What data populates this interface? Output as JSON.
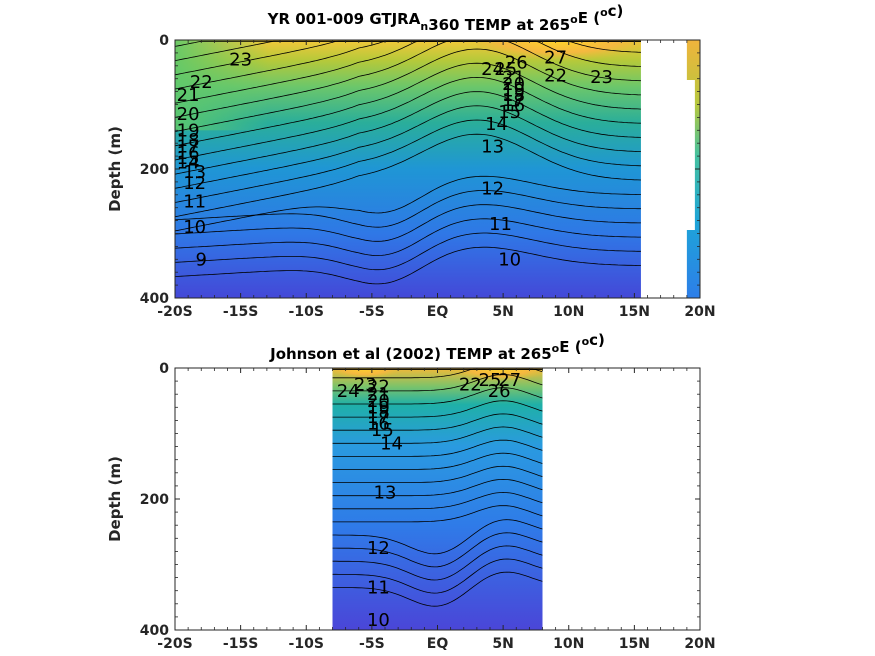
{
  "chart_data": [
    {
      "type": "contour",
      "title_parts": [
        "YR 001-009 GTJRA",
        "n",
        "360 TEMP at 265",
        "o",
        "E (",
        "o",
        "c)"
      ],
      "ylabel": "Depth (m)",
      "xlabel": "",
      "x_ticks": [
        "-20S",
        "-15S",
        "-10S",
        "-5S",
        "EQ",
        "5N",
        "10N",
        "15N",
        "20N"
      ],
      "x_range": [
        -20,
        20
      ],
      "y_ticks": [
        "0",
        "200",
        "400"
      ],
      "ylim": [
        400,
        0
      ],
      "data_lat_range": [
        -20,
        15.5
      ],
      "colorbar_strip": "partial, right edge near 20N",
      "contour_labels": [
        {
          "text": "23",
          "lat": -15,
          "depth": 30
        },
        {
          "text": "22",
          "lat": -18,
          "depth": 65
        },
        {
          "text": "21",
          "lat": -19,
          "depth": 85
        },
        {
          "text": "20",
          "lat": -19,
          "depth": 115
        },
        {
          "text": "19",
          "lat": -19,
          "depth": 140
        },
        {
          "text": "18",
          "lat": -19,
          "depth": 155
        },
        {
          "text": "17",
          "lat": -19,
          "depth": 165
        },
        {
          "text": "16",
          "lat": -19,
          "depth": 175
        },
        {
          "text": "15",
          "lat": -19,
          "depth": 183
        },
        {
          "text": "14",
          "lat": -19,
          "depth": 190
        },
        {
          "text": "13",
          "lat": -18.5,
          "depth": 205
        },
        {
          "text": "12",
          "lat": -18.5,
          "depth": 222
        },
        {
          "text": "11",
          "lat": -18.5,
          "depth": 250
        },
        {
          "text": "10",
          "lat": -18.5,
          "depth": 290
        },
        {
          "text": "9",
          "lat": -18,
          "depth": 340
        },
        {
          "text": "26",
          "lat": 6,
          "depth": 35
        },
        {
          "text": "27",
          "lat": 9,
          "depth": 27
        },
        {
          "text": "24",
          "lat": 4.2,
          "depth": 45
        },
        {
          "text": "25",
          "lat": 5.2,
          "depth": 45
        },
        {
          "text": "22",
          "lat": 9,
          "depth": 55
        },
        {
          "text": "23",
          "lat": 12.5,
          "depth": 57
        },
        {
          "text": "21",
          "lat": 5.8,
          "depth": 58
        },
        {
          "text": "20",
          "lat": 5.8,
          "depth": 68
        },
        {
          "text": "19",
          "lat": 5.8,
          "depth": 78
        },
        {
          "text": "18",
          "lat": 5.8,
          "depth": 85
        },
        {
          "text": "17",
          "lat": 5.8,
          "depth": 93
        },
        {
          "text": "16",
          "lat": 5.8,
          "depth": 101
        },
        {
          "text": "15",
          "lat": 5.5,
          "depth": 112
        },
        {
          "text": "14",
          "lat": 4.5,
          "depth": 130
        },
        {
          "text": "13",
          "lat": 4.2,
          "depth": 165
        },
        {
          "text": "12",
          "lat": 4.2,
          "depth": 230
        },
        {
          "text": "11",
          "lat": 4.8,
          "depth": 285
        },
        {
          "text": "10",
          "lat": 5.5,
          "depth": 340
        }
      ]
    },
    {
      "type": "contour",
      "title_parts": [
        "Johnson et al (2002) TEMP at 265",
        "o",
        "E (",
        "o",
        "c)"
      ],
      "ylabel": "Depth (m)",
      "xlabel": "",
      "x_ticks": [
        "-20S",
        "-15S",
        "-10S",
        "-5S",
        "EQ",
        "5N",
        "10N",
        "15N",
        "20N"
      ],
      "x_range": [
        -20,
        20
      ],
      "y_ticks": [
        "0",
        "200",
        "400"
      ],
      "ylim": [
        400,
        0
      ],
      "data_lat_range": [
        -8,
        8
      ],
      "contour_labels": [
        {
          "text": "24",
          "lat": -6.8,
          "depth": 35
        },
        {
          "text": "23",
          "lat": -5.5,
          "depth": 25
        },
        {
          "text": "22",
          "lat": -4.5,
          "depth": 28
        },
        {
          "text": "21",
          "lat": -4.5,
          "depth": 40
        },
        {
          "text": "20",
          "lat": -4.5,
          "depth": 50
        },
        {
          "text": "19",
          "lat": -4.5,
          "depth": 60
        },
        {
          "text": "18",
          "lat": -4.5,
          "depth": 67
        },
        {
          "text": "17",
          "lat": -4.5,
          "depth": 75
        },
        {
          "text": "16",
          "lat": -4.5,
          "depth": 85
        },
        {
          "text": "15",
          "lat": -4.2,
          "depth": 95
        },
        {
          "text": "14",
          "lat": -3.5,
          "depth": 115
        },
        {
          "text": "22",
          "lat": 2.5,
          "depth": 25
        },
        {
          "text": "25",
          "lat": 4.0,
          "depth": 18
        },
        {
          "text": "26",
          "lat": 4.7,
          "depth": 35
        },
        {
          "text": "27",
          "lat": 5.5,
          "depth": 18
        },
        {
          "text": "13",
          "lat": -4.0,
          "depth": 190
        },
        {
          "text": "12",
          "lat": -4.5,
          "depth": 275
        },
        {
          "text": "11",
          "lat": -4.5,
          "depth": 335
        },
        {
          "text": "10",
          "lat": -4.5,
          "depth": 385
        }
      ]
    }
  ]
}
